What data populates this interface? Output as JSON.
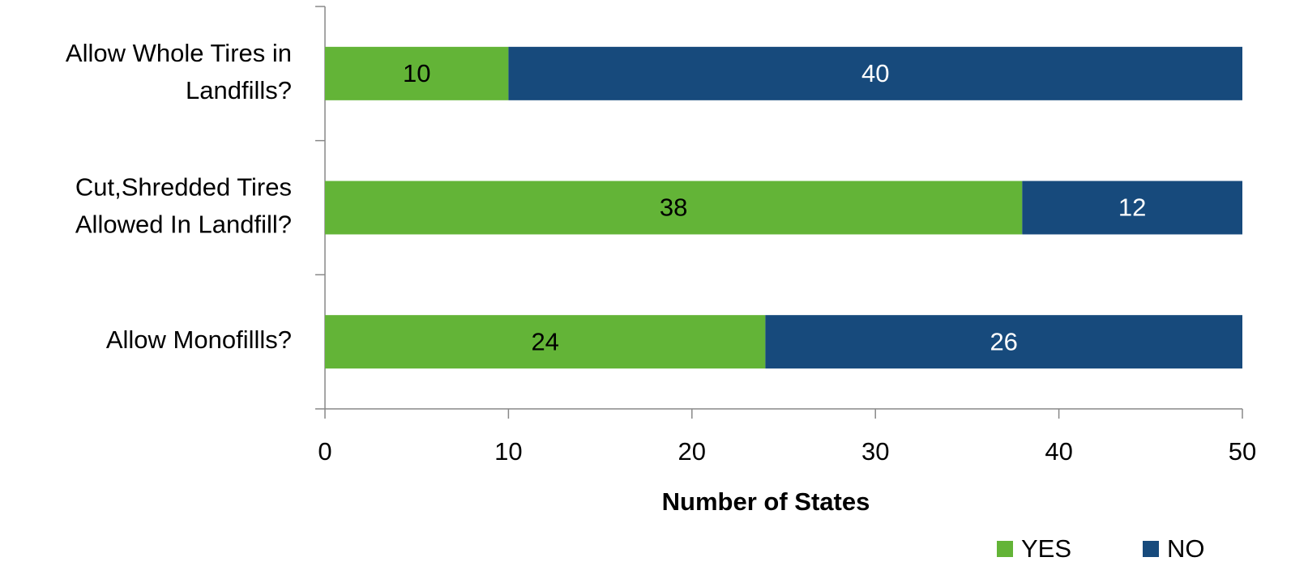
{
  "chart_data": {
    "type": "stacked_barh",
    "categories": [
      "Allow Whole Tires in Landfills?",
      "Cut,Shredded Tires Allowed In Landfill?",
      "Allow Monofillls?"
    ],
    "series": [
      {
        "name": "YES",
        "color": "#63b437",
        "values": [
          10,
          38,
          24
        ]
      },
      {
        "name": "NO",
        "color": "#174a7c",
        "values": [
          40,
          12,
          26
        ]
      }
    ],
    "xlabel": "Number of States",
    "xlim": [
      0,
      50
    ],
    "xticks": [
      0,
      10,
      20,
      30,
      40,
      50
    ],
    "legend": "bottom-right"
  }
}
